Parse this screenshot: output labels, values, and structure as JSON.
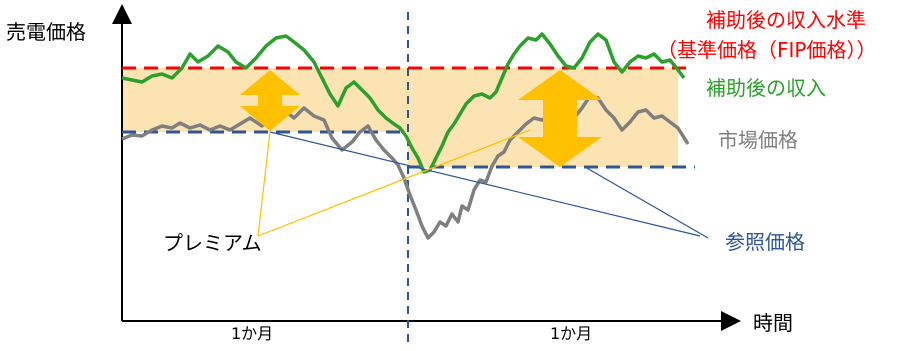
{
  "axes": {
    "y_label": "売電価格",
    "x_label": "時間"
  },
  "periods": [
    "1か月",
    "1か月"
  ],
  "labels": {
    "target_level_line1": "補助後の収入水準",
    "target_level_line2": "（基準価格（FIP価格））",
    "subsidized_revenue": "補助後の収入",
    "market_price": "市場価格",
    "premium": "プレミアム",
    "reference_price": "参照価格"
  },
  "colors": {
    "target_level": "#ff0000",
    "subsidized_revenue": "#2ca02c",
    "market_price": "#7f7f7f",
    "reference_price": "#2f5597",
    "premium": "#ffc000",
    "premium_band": "#fbe4b1"
  },
  "icons": [
    "up-down-arrow-icon",
    "up-down-arrow-icon"
  ]
}
